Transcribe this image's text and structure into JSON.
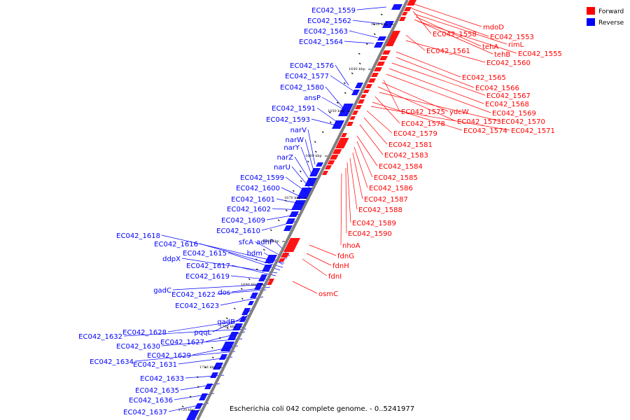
{
  "caption": "Escherichia coli 042 complete genome. - 0..5241977",
  "legend": [
    {
      "label": "Forward",
      "color": "#ff0000"
    },
    {
      "label": "Reverse",
      "color": "#0000ff"
    }
  ],
  "colors": {
    "forward": "#ff0000",
    "reverse": "#0000ff",
    "backbone": "#808080",
    "marker": "#000000"
  },
  "scale_labels": [
    "1630 kbp",
    "1640 kbp",
    "1650 kbp",
    "1660 kbp",
    "1670 kbp",
    "1680 kbp",
    "1690 kbp",
    "1700 kbp",
    "1710 kbp",
    "1720 kbp"
  ],
  "forward_labels": [
    "mdoD",
    "EC042_1553",
    "EC042_1558",
    "rimL",
    "tehA",
    "tehB",
    "EC042_1555",
    "EC042_1561",
    "EC042_1560",
    "EC042_1565",
    "EC042_1566",
    "EC042_1567",
    "EC042_1568",
    "EC042_1569",
    "EC042_1575",
    "ydcW",
    "EC042_1573",
    "EC042_1570",
    "EC042_1578",
    "EC042_1574",
    "EC042_1571",
    "EC042_1579",
    "EC042_1581",
    "EC042_1583",
    "EC042_1584",
    "EC042_1585",
    "EC042_1586",
    "EC042_1587",
    "EC042_1588",
    "EC042_1589",
    "EC042_1590",
    "nhoA",
    "fdnG",
    "fdnH",
    "fdnI",
    "osmC"
  ],
  "reverse_labels": [
    "EC042_1559",
    "EC042_1562",
    "EC042_1563",
    "EC042_1564",
    "EC042_1576",
    "EC042_1577",
    "EC042_1580",
    "ansP",
    "EC042_1591",
    "EC042_1593",
    "narV",
    "narW",
    "narY",
    "narZ",
    "narU",
    "EC042_1599",
    "EC042_1600",
    "EC042_1601",
    "EC042_1602",
    "EC042_1609",
    "EC042_1610",
    "sfcA",
    "adhP",
    "EC042_1618",
    "EC042_1616",
    "EC042_1615",
    "bdm",
    "ddpX",
    "EC042_1617",
    "EC042_1619",
    "gadC",
    "dos",
    "EC042_1622",
    "EC042_1623",
    "gadB",
    "pqqL",
    "EC042_1628",
    "EC042_1632",
    "EC042_1627",
    "EC042_1630",
    "EC042_1629",
    "EC042_1634",
    "EC042_1631",
    "EC042_1633",
    "EC042_1635",
    "EC042_1636",
    "EC042_1637"
  ]
}
